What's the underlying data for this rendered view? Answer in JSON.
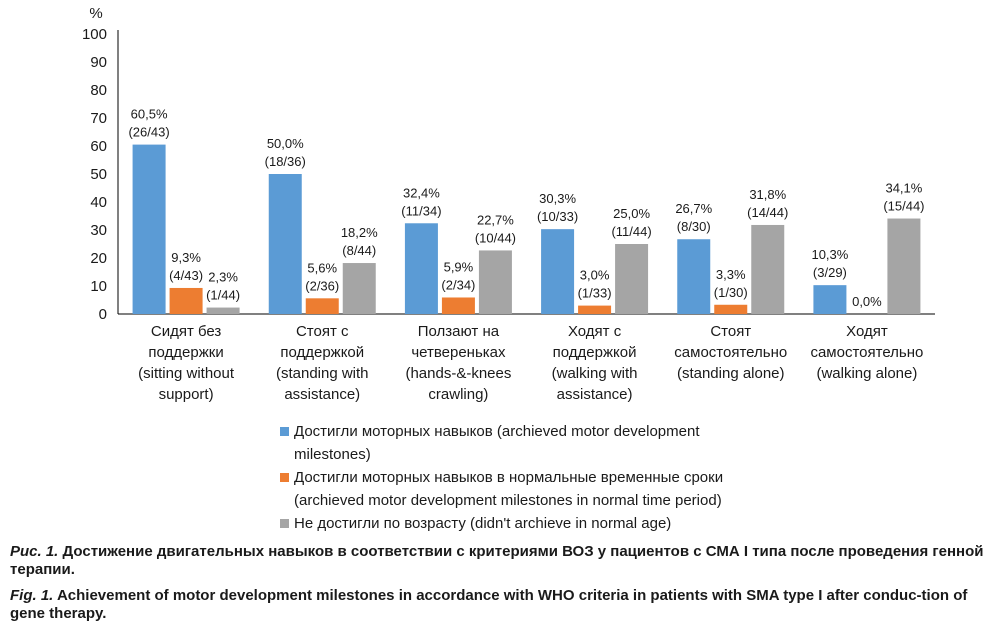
{
  "chart_data": {
    "type": "bar",
    "ylabel": "%",
    "ylim": [
      0,
      100
    ],
    "yticks": [
      "0",
      "10",
      "20",
      "30",
      "40",
      "50",
      "60",
      "70",
      "80",
      "90",
      "100"
    ],
    "grid": false,
    "legend_position": "bottom",
    "categories": [
      [
        "Сидят без",
        "поддержки",
        "(sitting without",
        "support)"
      ],
      [
        "Стоят с",
        "поддержкой",
        "(standing with",
        "assistance)"
      ],
      [
        "Ползают на",
        "четвереньках",
        "(hands-&-knees",
        "crawling)"
      ],
      [
        "Ходят с",
        "поддержкой",
        "(walking with",
        "assistance)"
      ],
      [
        "Стоят",
        "самостоятельно",
        "(standing alone)"
      ],
      [
        "Ходят",
        "самостоятельно",
        "(walking alone)"
      ]
    ],
    "series": [
      {
        "name": "Достигли моторных навыков (archieved motor development milestones)",
        "color": "#5b9bd5",
        "values": [
          60.5,
          50.0,
          32.4,
          30.3,
          26.7,
          10.3
        ],
        "labels": [
          [
            "60,5%",
            "(26/43)"
          ],
          [
            "50,0%",
            "(18/36)"
          ],
          [
            "32,4%",
            "(11/34)"
          ],
          [
            "30,3%",
            "(10/33)"
          ],
          [
            "26,7%",
            "(8/30)"
          ],
          [
            "10,3%",
            "(3/29)"
          ]
        ]
      },
      {
        "name": "Достигли моторных навыков в нормальные временные сроки (archieved motor development milestones in normal time period)",
        "color": "#ed7d31",
        "values": [
          9.3,
          5.6,
          5.9,
          3.0,
          3.3,
          0.0
        ],
        "labels": [
          [
            "9,3%",
            "(4/43)"
          ],
          [
            "5,6%",
            "(2/36)"
          ],
          [
            "5,9%",
            "(2/34)"
          ],
          [
            "3,0%",
            "(1/33)"
          ],
          [
            "3,3%",
            "(1/30)"
          ],
          [
            "0,0%"
          ]
        ]
      },
      {
        "name": "Не достигли по возрасту (didn't archieve in normal age)",
        "color": "#a5a5a5",
        "values": [
          2.3,
          18.2,
          22.7,
          25.0,
          31.8,
          34.1
        ],
        "labels": [
          [
            "2,3%",
            "(1/44)"
          ],
          [
            "18,2%",
            "(8/44)"
          ],
          [
            "22,7%",
            "(10/44)"
          ],
          [
            "25,0%",
            "(11/44)"
          ],
          [
            "31,8%",
            "(14/44)"
          ],
          [
            "34,1%",
            "(15/44)"
          ]
        ]
      }
    ]
  },
  "legend": [
    {
      "line1": "Достигли моторных навыков (archieved motor development",
      "line2": "milestones)",
      "color": "#5b9bd5"
    },
    {
      "line1": "Достигли моторных навыков в нормальные временные сроки",
      "line2": "(archieved motor development milestones in normal time period)",
      "color": "#ed7d31"
    },
    {
      "line1": "Не достигли по возрасту (didn't archieve in normal age)",
      "line2": "",
      "color": "#a5a5a5"
    }
  ],
  "caption_ru": {
    "prefix": "Рис. 1.",
    "text": " Достижение двигательных навыков в соответствии с критериями ВОЗ у пациентов с СМА I типа после проведения генной терапии."
  },
  "caption_en": {
    "prefix": "Fig. 1.",
    "text": " Achievement of motor development milestones in accordance with WHO criteria in patients with SMA type I after conduc-tion of gene therapy."
  }
}
